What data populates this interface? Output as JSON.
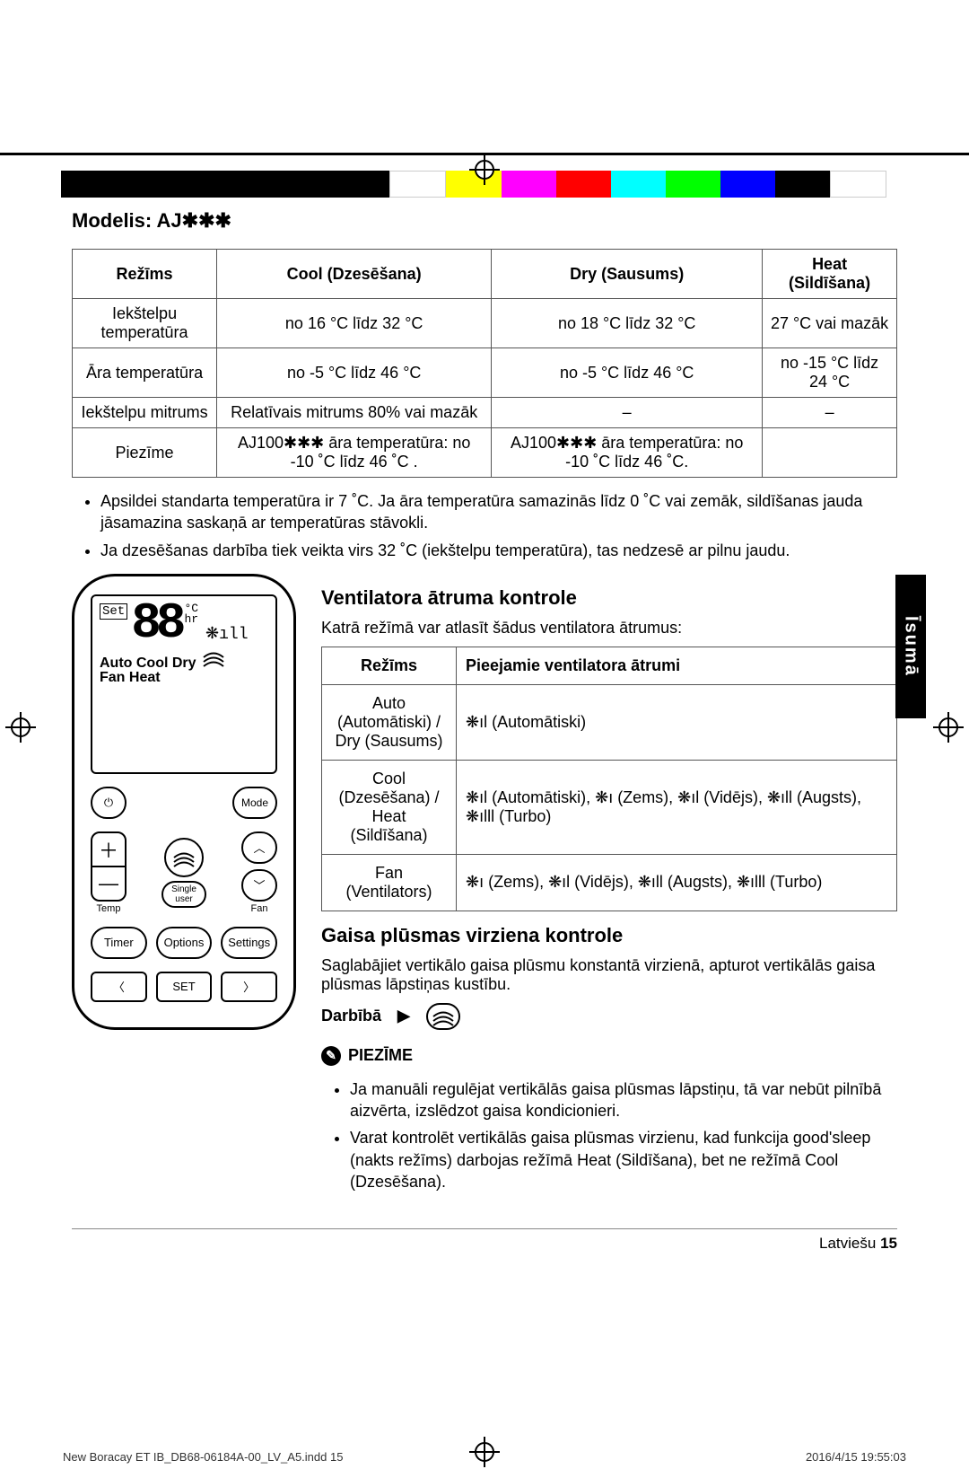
{
  "colorbar": [
    "#000000",
    "#000000",
    "#000000",
    "#000000",
    "#000000",
    "#000000",
    "#ffffff",
    "#ffff00",
    "#ff00ff",
    "#ff0000",
    "#00ffff",
    "#00ff00",
    "#0000ff",
    "#000000",
    "#ffffff"
  ],
  "sidebar_tab": "Īsumā",
  "headings": {
    "model": "Modelis: AJ✱✱✱",
    "fan_speed": "Ventilatora ātruma kontrole",
    "airflow": "Gaisa plūsmas virziena kontrole",
    "note_label": "PIEZĪME"
  },
  "table1": {
    "head": [
      "Režīms",
      "Cool (Dzesēšana)",
      "Dry (Sausums)",
      "Heat (Sildīšana)"
    ],
    "rows": [
      [
        "Iekštelpu temperatūra",
        "no 16 °C līdz 32 °C",
        "no 18 °C līdz 32 °C",
        "27 °C vai mazāk"
      ],
      [
        "Āra temperatūra",
        "no -5 °C līdz 46 °C",
        "no -5 °C līdz 46 °C",
        "no -15 °C līdz 24 °C"
      ],
      [
        "Iekštelpu mitrums",
        "Relatīvais mitrums 80% vai mazāk",
        "–",
        "–"
      ],
      [
        "Piezīme",
        "AJ100✱✱✱ āra temperatūra: no -10 ˚C līdz 46 ˚C .",
        "AJ100✱✱✱ āra temperatūra: no -10 ˚C līdz 46 ˚C.",
        ""
      ]
    ]
  },
  "notes_after_table1": [
    "Apsildei standarta temperatūra ir 7 ˚C. Ja āra temperatūra samazinās līdz 0 ˚C vai zemāk, sildīšanas jauda jāsamazina saskaņā ar temperatūras stāvokli.",
    "Ja dzesēšanas darbība tiek veikta virs 32 ˚C (iekštelpu temperatūra), tas nedzesē ar pilnu jaudu."
  ],
  "remote": {
    "lcd_set": "Set",
    "lcd_digits": "88",
    "lcd_unit_top": "°C",
    "lcd_unit_bottom": "hr",
    "lcd_modes_line1": "Auto Cool Dry",
    "lcd_modes_line2": "Fan   Heat",
    "buttons": {
      "power": "⏻",
      "mode": "Mode",
      "temp_plus": "＋",
      "temp_minus": "—",
      "temp_label": "Temp",
      "swing": "swing",
      "fan": "Fan",
      "up": "︿",
      "down": "﹀",
      "single_user": "Single\nuser",
      "timer": "Timer",
      "options": "Options",
      "settings": "Settings",
      "left": "〈",
      "set": "SET",
      "right": "〉"
    }
  },
  "fan_intro": "Katrā režīmā var atlasīt šādus ventilatora ātrumus:",
  "table2": {
    "head": [
      "Režīms",
      "Pieejamie ventilatora ātrumi"
    ],
    "rows": [
      {
        "mode": "Auto\n(Automātiski) /\nDry (Sausums)",
        "speeds": "❋ıl (Automātiski)"
      },
      {
        "mode": "Cool\n(Dzesēšana) /\nHeat (Sildīšana)",
        "speeds": "❋ıl (Automātiski), ❋ı (Zems), ❋ıl (Vidējs), ❋ıll (Augsts), ❋ılll (Turbo)"
      },
      {
        "mode": "Fan\n(Ventilators)",
        "speeds": "❋ı (Zems), ❋ıl (Vidējs), ❋ıll (Augsts), ❋ılll (Turbo)"
      }
    ]
  },
  "airflow_intro": "Saglabājiet vertikālo gaisa plūsmu konstantā virzienā, apturot vertikālās gaisa plūsmas lāpstiņas kustību.",
  "action_label": "Darbībā",
  "action_play": "▶",
  "note_bullets": [
    "Ja manuāli regulējat vertikālās gaisa plūsmas lāpstiņu, tā var nebūt pilnībā aizvērta, izslēdzot gaisa kondicionieri.",
    "Varat kontrolēt vertikālās gaisa plūsmas virzienu, kad funkcija good'sleep (nakts režīms) darbojas režīmā Heat (Sildīšana), bet ne režīmā Cool (Dzesēšana)."
  ],
  "footer": {
    "lang": "Latviešu",
    "pageno": "15",
    "left_meta": "New Boracay ET IB_DB68-06184A-00_LV_A5.indd   15",
    "right_meta": "2016/4/15   19:55:03"
  }
}
